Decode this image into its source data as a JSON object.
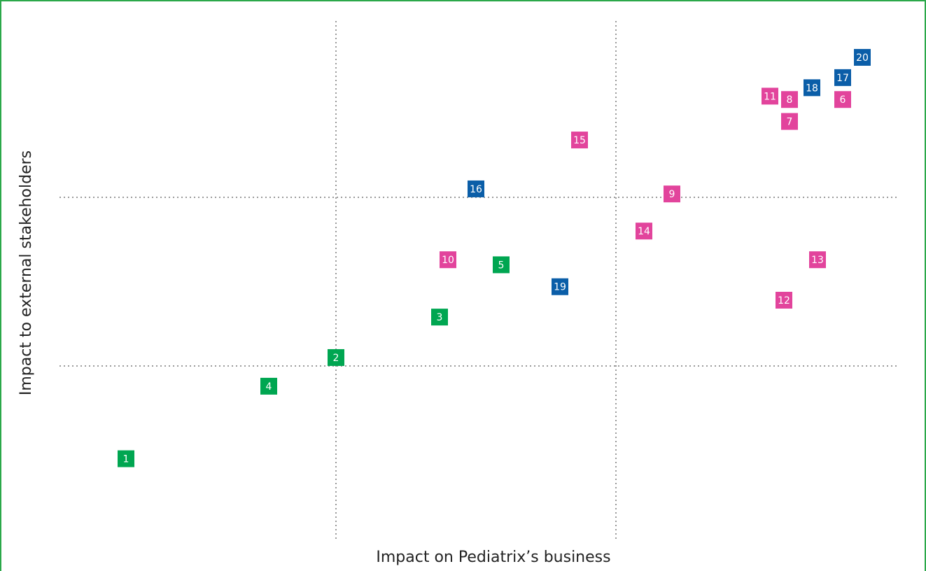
{
  "chart_data": {
    "type": "scatter",
    "x_label": "Impact on Pediatrix’s business",
    "y_label": "Impact to external stakeholders",
    "xlim": [
      0,
      3
    ],
    "ylim": [
      0,
      3
    ],
    "quadrant_lines": {
      "x": [
        1,
        2
      ],
      "y": [
        1,
        2
      ]
    },
    "series": [
      {
        "color": "#00a651",
        "labels": [
          "1",
          "2",
          "3",
          "4",
          "5"
        ],
        "x": [
          0.25,
          1.0,
          1.37,
          0.76,
          1.59
        ],
        "y": [
          0.45,
          1.05,
          1.29,
          0.88,
          1.6
        ]
      },
      {
        "color": "#e2449c",
        "labels": [
          "6",
          "7",
          "8",
          "9",
          "10",
          "11",
          "12",
          "13",
          "14",
          "15"
        ],
        "x": [
          2.81,
          2.62,
          2.62,
          2.2,
          1.4,
          2.55,
          2.6,
          2.72,
          2.1,
          1.87
        ],
        "y": [
          2.58,
          2.45,
          2.58,
          2.02,
          1.63,
          2.6,
          1.39,
          1.63,
          1.8,
          2.34
        ]
      },
      {
        "color": "#0b5ea8",
        "labels": [
          "16",
          "17",
          "18",
          "19",
          "20"
        ],
        "x": [
          1.5,
          2.81,
          2.7,
          1.8,
          2.88
        ],
        "y": [
          2.05,
          2.71,
          2.65,
          1.47,
          2.83
        ]
      }
    ]
  }
}
